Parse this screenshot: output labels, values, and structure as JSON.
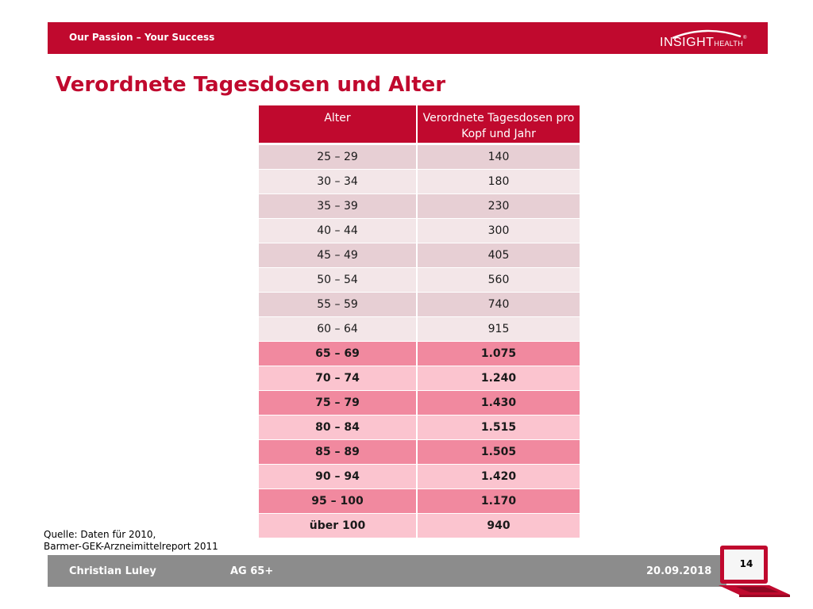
{
  "header": {
    "tagline": "Our Passion – Your Success",
    "logo": {
      "main": "INSIGHT",
      "sub": "HEALTH",
      "reg": "®"
    }
  },
  "title": "Verordnete Tagesdosen und Alter",
  "table": {
    "headers": [
      "Alter",
      "Verordnete Tagesdosen pro Kopf und Jahr"
    ],
    "rows": [
      {
        "age": "25 – 29",
        "value": "140"
      },
      {
        "age": "30 – 34",
        "value": "180"
      },
      {
        "age": "35 – 39",
        "value": "230"
      },
      {
        "age": "40 – 44",
        "value": "300"
      },
      {
        "age": "45 – 49",
        "value": "405"
      },
      {
        "age": "50 – 54",
        "value": "560"
      },
      {
        "age": "55 – 59",
        "value": "740"
      },
      {
        "age": "60 – 64",
        "value": "915"
      },
      {
        "age": "65 – 69",
        "value": "1.075"
      },
      {
        "age": "70 – 74",
        "value": "1.240"
      },
      {
        "age": "75 – 79",
        "value": "1.430"
      },
      {
        "age": "80 – 84",
        "value": "1.515"
      },
      {
        "age": "85 – 89",
        "value": "1.505"
      },
      {
        "age": "90 – 94",
        "value": "1.420"
      },
      {
        "age": "95 – 100",
        "value": "1.170"
      },
      {
        "age": "über 100",
        "value": "940"
      }
    ]
  },
  "source": {
    "line1": "Quelle: Daten für 2010,",
    "line2": "Barmer-GEK-Arzneimittelreport 2011"
  },
  "footer": {
    "author": "Christian Luley",
    "project": "AG 65+",
    "date": "20.09.2018",
    "page_number": "14"
  },
  "colors": {
    "brand_red": "#c0092e",
    "light_row_a": "#e7cfd4",
    "light_row_b": "#f3e6e8",
    "strong_row_a": "#f1899f",
    "strong_row_b": "#fbc4cf",
    "footer_gray": "#8c8c8c"
  },
  "icons": {
    "page_badge": "laptop-icon"
  }
}
